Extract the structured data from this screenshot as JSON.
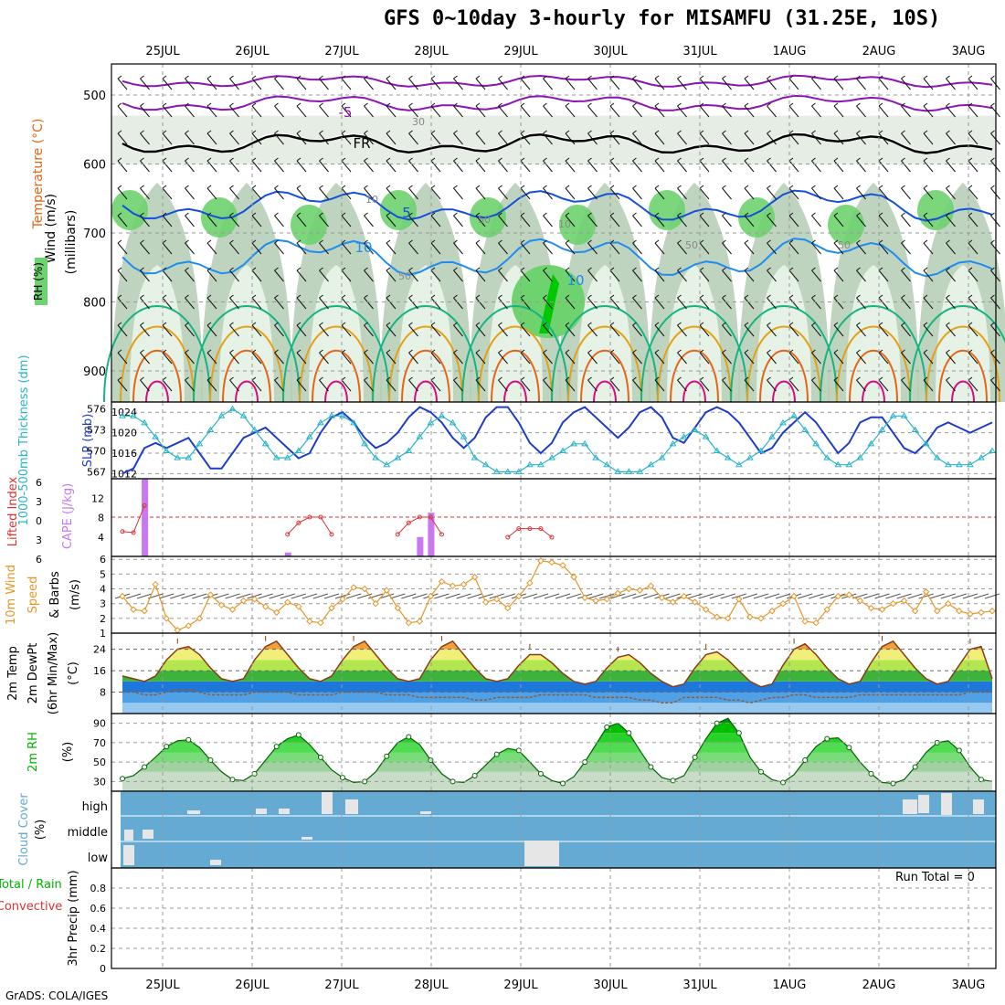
{
  "title": "GFS 0~10day 3-hourly for MISAMFU (31.25E, 10S)",
  "footer": "GrADS: COLA/IGES",
  "dates": [
    "25JUL",
    "26JUL",
    "27JUL",
    "28JUL",
    "29JUL",
    "30JUL",
    "31JUL",
    "1AUG",
    "2AUG",
    "3AUG"
  ],
  "colors": {
    "rh_light": "#e6f2e6",
    "rh_mid": "#b4ccb4",
    "rh_green": "#6ed26e",
    "rh_bright": "#00c800",
    "temp_purple": "#8c14b4",
    "temp_blue1": "#1450dc",
    "temp_blue2": "#1e8cf0",
    "temp_teal": "#14b482",
    "temp_orange": "#e6a014",
    "temp_red": "#e66414",
    "temp_magenta": "#dc0a82",
    "slp": "#1e3cc8",
    "thick": "#28b4c8",
    "cape": "#c878f0",
    "lifted": "#dc3232",
    "wind": "#e69628",
    "cloud": "#64aad2",
    "rh2m": "#00b400"
  },
  "panels": {
    "upper": {
      "ylabel_parts": [
        "RH (%)",
        "Temperature (°C)",
        "Wind (m/s)"
      ],
      "ylabel_right": "(millibars)",
      "yticks": [
        "500",
        "600",
        "700",
        "800",
        "900"
      ],
      "contour_labels": [
        "-5",
        "FR",
        "5",
        "10",
        "10",
        "30",
        "50",
        "50",
        "50",
        "50",
        "10",
        "10"
      ]
    },
    "slp": {
      "ylabel_left": "1000-500mb Thickness (dm)",
      "ylabel_right": "SLP (mb)",
      "left_ticks": [
        "576",
        "573",
        "570",
        "567"
      ],
      "right_ticks": [
        "1024",
        "1020",
        "1016",
        "1012"
      ]
    },
    "cape": {
      "ylabel_left": "Lifted Index",
      "ylabel_right": "CAPE (J/kg)",
      "left_ticks": [
        "6",
        "3",
        "0",
        "3",
        "6"
      ],
      "right_ticks": [
        "12",
        "8",
        "4"
      ]
    },
    "wind": {
      "ylabel": [
        "10m Wind",
        "Speed",
        "& Barbs",
        "(m/s)"
      ],
      "ticks": [
        "6",
        "5",
        "4",
        "3",
        "2",
        "1"
      ]
    },
    "temp": {
      "ylabel": [
        "2m Temp",
        "2m DewPt",
        "(6hr Min/Max)",
        "(°C)"
      ],
      "ticks": [
        "24",
        "16",
        "8"
      ]
    },
    "rh": {
      "ylabel": [
        "2m RH",
        "(%)"
      ],
      "ticks": [
        "90",
        "70",
        "50",
        "30"
      ]
    },
    "cloud": {
      "ylabel": [
        "Cloud Cover",
        "(%)"
      ],
      "levels": [
        "high",
        "middle",
        "low"
      ]
    },
    "precip": {
      "ylabel": [
        "Total / Rain",
        "Convective",
        "3hr Precip (mm)"
      ],
      "ticks": [
        "0.8",
        "0.6",
        "0.4",
        "0.2",
        "0"
      ],
      "run_total": "Run Total = 0"
    }
  },
  "chart_data": {
    "type": "line",
    "x_hours": [
      0,
      3,
      6,
      9,
      12,
      15,
      18,
      21,
      24,
      27,
      30,
      33,
      36,
      39,
      42,
      45,
      48,
      51,
      54,
      57,
      60,
      63,
      66,
      69,
      72,
      75,
      78,
      81,
      84,
      87,
      90,
      93,
      96,
      99,
      102,
      105,
      108,
      111,
      114,
      117,
      120,
      123,
      126,
      129,
      132,
      135,
      138,
      141,
      144,
      147,
      150,
      153,
      156,
      159,
      162,
      165,
      168,
      171,
      174,
      177,
      180,
      183,
      186,
      189,
      192,
      195,
      198,
      201,
      204,
      207,
      210,
      213,
      216,
      219,
      222,
      225,
      228,
      231,
      234,
      237
    ],
    "start": "24JUL 12Z",
    "series": [
      {
        "name": "SLP (mb)",
        "values": [
          1012,
          1013,
          1017,
          1018,
          1017,
          1018,
          1019,
          1016,
          1013,
          1013,
          1016,
          1019,
          1020,
          1021,
          1019,
          1017,
          1015,
          1016,
          1020,
          1023,
          1024,
          1022,
          1019,
          1017,
          1018,
          1020,
          1023,
          1025,
          1024,
          1022,
          1019,
          1017,
          1019,
          1023,
          1025,
          1025,
          1022,
          1018,
          1016,
          1018,
          1022,
          1024,
          1025,
          1023,
          1021,
          1019,
          1021,
          1024,
          1025,
          1023,
          1019,
          1018,
          1021,
          1024,
          1025,
          1024,
          1022,
          1019,
          1016,
          1017,
          1020,
          1022,
          1024,
          1022,
          1019,
          1016,
          1018,
          1022,
          1023,
          1023,
          1020,
          1017,
          1016,
          1018,
          1021,
          1022,
          1021,
          1020,
          1021,
          1022
        ]
      },
      {
        "name": "Thickness (dm)",
        "values": [
          575,
          575,
          574,
          572,
          570,
          569,
          569,
          571,
          573,
          575,
          576,
          575,
          573,
          571,
          569,
          569,
          570,
          572,
          574,
          575,
          575,
          574,
          571,
          569,
          568,
          569,
          570,
          572,
          574,
          575,
          574,
          572,
          569,
          568,
          567,
          567,
          567,
          568,
          568,
          569,
          570,
          571,
          571,
          569,
          568,
          567,
          567,
          567,
          568,
          569,
          571,
          572,
          573,
          572,
          570,
          569,
          568,
          569,
          570,
          572,
          574,
          575,
          573,
          571,
          569,
          568,
          568,
          569,
          571,
          573,
          575,
          575,
          573,
          571,
          569,
          568,
          568,
          568,
          569,
          570
        ]
      },
      {
        "name": "2m Temp (°C)",
        "values": [
          14,
          13,
          12,
          14,
          20,
          24,
          25,
          22,
          17,
          13,
          12,
          13,
          20,
          25,
          27,
          22,
          17,
          13,
          12,
          14,
          20,
          25,
          27,
          22,
          17,
          13,
          12,
          13,
          20,
          25,
          27,
          22,
          17,
          13,
          12,
          13,
          18,
          22,
          22,
          19,
          15,
          12,
          11,
          12,
          17,
          21,
          22,
          19,
          15,
          12,
          10,
          11,
          17,
          22,
          23,
          20,
          16,
          12,
          10,
          11,
          18,
          24,
          26,
          22,
          17,
          13,
          11,
          12,
          19,
          25,
          27,
          22,
          17,
          13,
          11,
          12,
          18,
          24,
          25,
          13
        ]
      },
      {
        "name": "2m DewPt (°C)",
        "values": [
          8,
          8,
          7,
          7,
          8,
          9,
          9,
          8,
          7,
          7,
          7,
          7,
          8,
          8,
          8,
          8,
          7,
          7,
          7,
          7,
          8,
          8,
          8,
          8,
          7,
          7,
          7,
          6,
          6,
          6,
          6,
          6,
          5,
          5,
          6,
          6,
          6,
          6,
          7,
          7,
          7,
          7,
          7,
          6,
          6,
          6,
          6,
          5,
          5,
          4,
          4,
          6,
          6,
          6,
          6,
          5,
          5,
          4,
          5,
          6,
          6,
          7,
          7,
          6,
          6,
          6,
          6,
          7,
          7,
          7,
          7,
          7,
          7,
          7,
          7,
          7,
          7,
          8,
          8,
          8
        ]
      },
      {
        "name": "2m RH (%)",
        "values": [
          33,
          36,
          45,
          55,
          66,
          72,
          73,
          65,
          52,
          40,
          32,
          31,
          38,
          52,
          66,
          74,
          78,
          68,
          55,
          42,
          34,
          29,
          30,
          40,
          56,
          70,
          76,
          68,
          52,
          38,
          30,
          29,
          36,
          47,
          58,
          64,
          62,
          50,
          38,
          31,
          28,
          35,
          50,
          68,
          86,
          90,
          80,
          62,
          45,
          34,
          31,
          36,
          55,
          74,
          90,
          95,
          80,
          55,
          40,
          32,
          29,
          37,
          52,
          66,
          74,
          75,
          65,
          50,
          38,
          29,
          28,
          32,
          45,
          60,
          70,
          72,
          62,
          45,
          32,
          30
        ]
      },
      {
        "name": "10m Wind (m/s)",
        "values": [
          3.5,
          2.6,
          2.5,
          4.3,
          2.0,
          1.2,
          1.5,
          2.0,
          3.6,
          2.9,
          2.6,
          3.2,
          3.3,
          2.8,
          2.4,
          3.1,
          2.8,
          1.8,
          1.7,
          2.7,
          3.3,
          4.1,
          4.0,
          3.0,
          3.9,
          2.7,
          1.7,
          1.8,
          3.5,
          4.5,
          4.2,
          4.3,
          4.8,
          3.1,
          3.3,
          2.7,
          3.5,
          4.4,
          5.9,
          5.8,
          5.6,
          4.8,
          3.4,
          3.2,
          3.3,
          3.7,
          4.0,
          3.9,
          4.2,
          3.4,
          3.1,
          3.5,
          3.1,
          2.6,
          2.1,
          2.0,
          3.3,
          2.1,
          2.0,
          2.5,
          3.0,
          3.5,
          1.8,
          1.7,
          2.6,
          3.5,
          3.6,
          3.2,
          2.7,
          2.6,
          3.0,
          3.2,
          2.5,
          3.8,
          2.5,
          3.0,
          2.5,
          2.3,
          2.4,
          2.5
        ]
      },
      {
        "name": "Lifted Index",
        "values": [
          2.5,
          2.7,
          -2.0,
          null,
          null,
          null,
          null,
          null,
          null,
          null,
          null,
          null,
          null,
          null,
          null,
          3,
          1,
          0,
          0,
          3,
          null,
          null,
          null,
          null,
          null,
          3,
          1,
          0,
          0,
          3,
          null,
          null,
          null,
          null,
          null,
          3.5,
          2,
          2,
          2,
          3.5,
          null,
          null,
          null,
          null,
          null,
          null,
          null,
          null,
          null,
          null,
          null,
          null,
          null,
          null,
          null,
          null,
          null,
          null,
          null,
          null,
          null,
          null,
          null,
          null,
          null,
          null,
          null,
          null,
          null,
          null,
          null,
          null,
          null,
          null,
          null,
          null,
          null,
          null,
          null,
          null
        ]
      },
      {
        "name": "CAPE (J/kg)",
        "values": [
          0,
          0,
          16,
          0,
          0,
          0,
          0,
          0,
          0,
          0,
          0,
          0,
          0,
          0,
          0,
          0.8,
          0,
          0,
          0,
          0,
          0,
          0,
          0,
          0,
          0,
          0,
          0,
          4,
          9,
          0,
          0,
          0,
          0,
          0,
          0,
          0,
          0,
          0,
          0,
          0,
          0,
          0,
          0,
          0,
          0,
          0,
          0,
          0,
          0,
          0,
          0,
          0,
          0,
          0,
          0,
          0,
          0,
          0,
          0,
          0,
          0,
          0,
          0,
          0,
          0,
          0,
          0,
          0,
          0,
          0,
          0,
          0,
          0,
          0,
          0,
          0,
          0,
          0,
          0,
          0
        ]
      },
      {
        "name": "3hr Precip (mm)",
        "values": [
          0,
          0,
          0,
          0,
          0,
          0,
          0,
          0,
          0,
          0,
          0,
          0,
          0,
          0,
          0,
          0,
          0,
          0,
          0,
          0,
          0,
          0,
          0,
          0,
          0,
          0,
          0,
          0,
          0,
          0,
          0,
          0,
          0,
          0,
          0,
          0,
          0,
          0,
          0,
          0,
          0,
          0,
          0,
          0,
          0,
          0,
          0,
          0,
          0,
          0,
          0,
          0,
          0,
          0,
          0,
          0,
          0,
          0,
          0,
          0,
          0,
          0,
          0,
          0,
          0,
          0,
          0,
          0,
          0,
          0,
          0,
          0,
          0,
          0,
          0,
          0,
          0,
          0,
          0,
          0
        ]
      }
    ]
  }
}
